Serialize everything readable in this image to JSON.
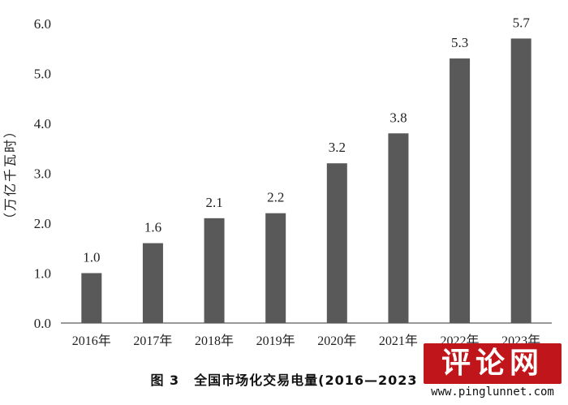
{
  "chart_data": {
    "type": "bar",
    "categories": [
      "2016年",
      "2017年",
      "2018年",
      "2019年",
      "2020年",
      "2021年",
      "2022年",
      "2023年"
    ],
    "values": [
      1.0,
      1.6,
      2.1,
      2.2,
      3.2,
      3.8,
      5.3,
      5.7
    ],
    "value_labels": [
      "1.0",
      "1.6",
      "2.1",
      "2.2",
      "3.2",
      "3.8",
      "5.3",
      "5.7"
    ],
    "ylabel": "（万亿千瓦时）",
    "ylim": [
      0,
      6
    ],
    "yticks": [
      "0.0",
      "1.0",
      "2.0",
      "3.0",
      "4.0",
      "5.0",
      "6.0"
    ],
    "grid": false,
    "bar_color": "#595959"
  },
  "caption": {
    "label": "图 3",
    "text": "全国市场化交易电量(2016—2023"
  },
  "watermark": {
    "cn": "评论网",
    "url": "www.pinglunnet.com",
    "color": "#c0151b"
  }
}
